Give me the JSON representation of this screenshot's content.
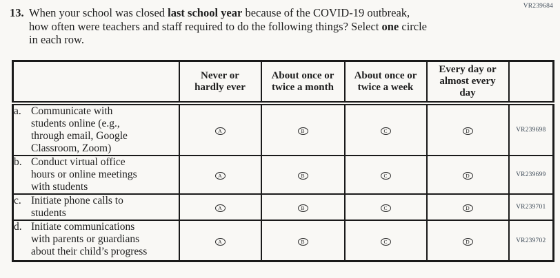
{
  "page": {
    "top_code": "VR239684"
  },
  "colors": {
    "background": "#f9f8f5",
    "text": "#1e1e1e",
    "border": "#1a1a1a",
    "code_text": "#3d4a57"
  },
  "question": {
    "number": "13.",
    "segments": [
      {
        "text": "When your school was closed ",
        "bold": false
      },
      {
        "text": "last school year",
        "bold": true
      },
      {
        "text": " because of the COVID-19 outbreak,\nhow often were teachers and staff required to do the following things? Select ",
        "bold": false
      },
      {
        "text": "one",
        "bold": true
      },
      {
        "text": " circle\nin each row.",
        "bold": false
      }
    ]
  },
  "table": {
    "columns": [
      "",
      "Never or\nhardly ever",
      "About once or\ntwice a month",
      "About once or\ntwice a week",
      "Every day or\nalmost every\nday",
      ""
    ],
    "options": [
      "A",
      "B",
      "C",
      "D"
    ],
    "rows": [
      {
        "letter": "a.",
        "text": "Communicate with\nstudents online (e.g.,\nthrough email, Google\nClassroom, Zoom)",
        "code": "VR239698"
      },
      {
        "letter": "b.",
        "text": "Conduct virtual office\nhours or online meetings\nwith students",
        "code": "VR239699"
      },
      {
        "letter": "c.",
        "text": "Initiate phone calls to\nstudents",
        "code": "VR239701"
      },
      {
        "letter": "d.",
        "text": "Initiate communications\nwith parents or guardians\nabout their child’s progress",
        "code": "VR239702"
      }
    ]
  }
}
